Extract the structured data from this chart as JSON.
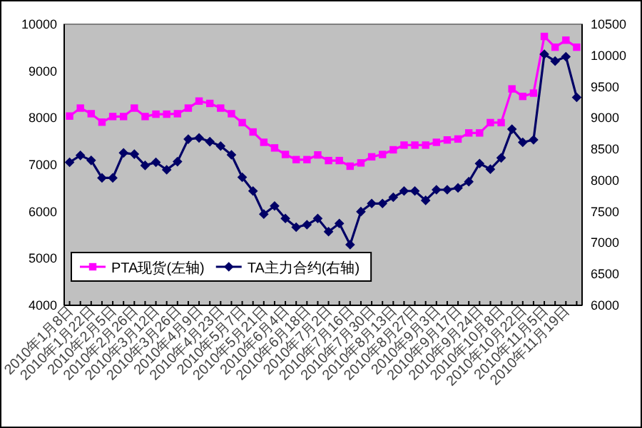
{
  "chart_data": {
    "type": "line",
    "categories": [
      "2010年1月8日",
      null,
      "2010年1月22日",
      null,
      "2010年2月5日",
      null,
      "2010年2月26日",
      null,
      "2010年3月12日",
      null,
      "2010年3月26日",
      null,
      "2010年4月9日",
      null,
      "2010年4月23日",
      null,
      "2010年5月7日",
      null,
      "2010年5月21日",
      null,
      "2010年6月4日",
      null,
      "2010年6月18日",
      null,
      "2010年7月2日",
      null,
      "2010年7月16日",
      null,
      "2010年7月30日",
      null,
      "2010年8月13日",
      null,
      "2010年8月27日",
      null,
      "2010年9月3日",
      null,
      "2010年9月17日",
      null,
      "2010年9月24日",
      null,
      "2010年10月8日",
      null,
      "2010年10月22日",
      null,
      "2010年11月5日",
      null,
      "2010年11月19日",
      null
    ],
    "series": [
      {
        "name": "PTA现货(左轴)",
        "color": "#ff00ff",
        "marker": "square",
        "values": [
          8040,
          8210,
          8090,
          7910,
          8030,
          8030,
          8210,
          8030,
          8080,
          8080,
          8090,
          8210,
          8360,
          8310,
          8210,
          8090,
          7900,
          7700,
          7480,
          7360,
          7220,
          7110,
          7110,
          7210,
          7090,
          7090,
          6970,
          7040,
          7170,
          7220,
          7320,
          7420,
          7420,
          7420,
          7480,
          7530,
          7550,
          7680,
          7680,
          7900,
          7900,
          8620,
          8460,
          8530,
          9740,
          9510,
          9660,
          9510
        ]
      },
      {
        "name": "TA主力合约(右轴)",
        "color": "#000066",
        "marker": "diamond",
        "axis": "y2",
        "values": [
          8290,
          8400,
          8320,
          8040,
          8040,
          8440,
          8420,
          8240,
          8290,
          8170,
          8300,
          8660,
          8680,
          8620,
          8550,
          8410,
          8050,
          7830,
          7460,
          7590,
          7390,
          7250,
          7290,
          7390,
          7180,
          7310,
          6970,
          7500,
          7630,
          7630,
          7730,
          7830,
          7830,
          7680,
          7850,
          7850,
          7880,
          7980,
          8270,
          8180,
          8360,
          8820,
          8610,
          8650,
          10020,
          9910,
          9980,
          9330
        ]
      }
    ],
    "ylim": [
      4000,
      10000
    ],
    "yticks": [
      4000,
      5000,
      6000,
      7000,
      8000,
      9000,
      10000
    ],
    "y2lim": [
      6000,
      10500
    ],
    "y2ticks": [
      6000,
      6500,
      7000,
      7500,
      8000,
      8500,
      9000,
      9500,
      10000,
      10500
    ],
    "legend": "bottom left",
    "grid": false
  }
}
